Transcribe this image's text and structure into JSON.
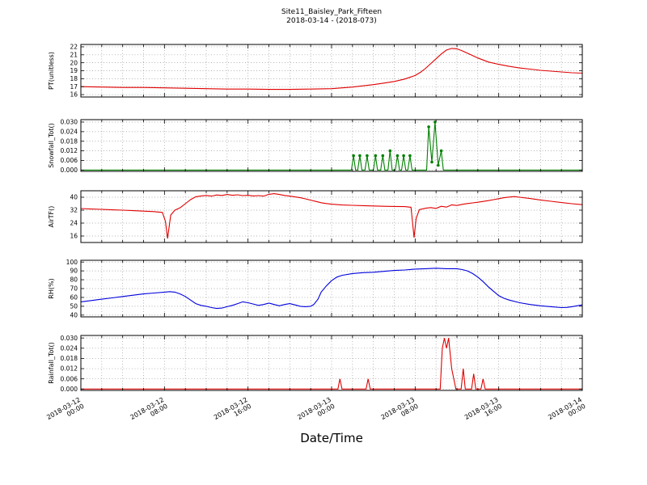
{
  "chart_data": {
    "type": "line",
    "title": "Site11_Baisley_Park_Fifteen",
    "subtitle": "2018-03-14 - (2018-073)",
    "xlabel": "Date/Time",
    "grid": true,
    "x_unit": "hours since 2018-03-12 00:00",
    "x_range": [
      0,
      48
    ],
    "x_grid_step": 2,
    "x_ticks": [
      {
        "v": 0,
        "l1": "2018-03-12",
        "l2": "00:00"
      },
      {
        "v": 8,
        "l1": "2018-03-12",
        "l2": "08:00"
      },
      {
        "v": 16,
        "l1": "2018-03-12",
        "l2": "16:00"
      },
      {
        "v": 24,
        "l1": "2018-03-13",
        "l2": "00:00"
      },
      {
        "v": 32,
        "l1": "2018-03-13",
        "l2": "08:00"
      },
      {
        "v": 40,
        "l1": "2018-03-13",
        "l2": "16:00"
      },
      {
        "v": 48,
        "l1": "2018-03-14",
        "l2": "00:00"
      }
    ],
    "subplots": [
      {
        "id": "pt",
        "ylabel": "PT(unitless)",
        "color": "#e00000",
        "ylim": [
          15.7,
          22.3
        ],
        "yticks": [
          16,
          17,
          18,
          19,
          20,
          21,
          22
        ],
        "ytick_labels": [
          "16",
          "17",
          "18",
          "19",
          "20",
          "21",
          "22"
        ],
        "marker": false,
        "x": [
          0,
          2,
          4,
          6,
          8,
          10,
          12,
          14,
          16,
          18,
          20,
          22,
          24,
          25,
          26,
          27,
          28,
          29,
          30,
          31,
          32,
          32.5,
          33,
          33.5,
          34,
          34.5,
          35,
          35.5,
          36,
          36.5,
          37,
          37.5,
          38,
          38.5,
          39,
          40,
          41,
          42,
          43,
          44,
          45,
          46,
          47,
          48
        ],
        "y": [
          17.0,
          16.95,
          16.9,
          16.9,
          16.85,
          16.8,
          16.75,
          16.7,
          16.7,
          16.65,
          16.65,
          16.7,
          16.75,
          16.85,
          16.95,
          17.1,
          17.25,
          17.45,
          17.65,
          17.95,
          18.4,
          18.8,
          19.3,
          19.9,
          20.5,
          21.1,
          21.6,
          21.8,
          21.75,
          21.5,
          21.2,
          20.9,
          20.6,
          20.35,
          20.1,
          19.8,
          19.55,
          19.35,
          19.2,
          19.05,
          18.95,
          18.85,
          18.75,
          18.7
        ]
      },
      {
        "id": "snowfall",
        "ylabel": "Snowfall_Tot()",
        "color": "#008000",
        "ylim": [
          -0.0008,
          0.0315
        ],
        "yticks": [
          0,
          0.006,
          0.012,
          0.018,
          0.024,
          0.03
        ],
        "ytick_labels": [
          "0.000",
          "0.006",
          "0.012",
          "0.018",
          "0.024",
          "0.030"
        ],
        "marker": true,
        "x": [
          0,
          25.9,
          26.1,
          26.3,
          26.5,
          26.7,
          26.9,
          27.2,
          27.4,
          27.6,
          28.0,
          28.2,
          28.4,
          28.7,
          28.9,
          29.1,
          29.4,
          29.6,
          29.8,
          30.1,
          30.3,
          30.5,
          30.7,
          30.9,
          31.1,
          31.3,
          31.5,
          31.7,
          33.1,
          33.3,
          33.6,
          33.9,
          34.2,
          34.5,
          34.7,
          48
        ],
        "y": [
          0,
          0,
          0.009,
          0,
          0,
          0.009,
          0,
          0,
          0.009,
          0,
          0,
          0.009,
          0,
          0,
          0.009,
          0,
          0,
          0.012,
          0,
          0,
          0.009,
          0,
          0,
          0.009,
          0,
          0,
          0.009,
          0,
          0,
          0.027,
          0.005,
          0.03,
          0.003,
          0.012,
          0,
          0
        ]
      },
      {
        "id": "airtf",
        "ylabel": "AirTF()",
        "color": "#e00000",
        "ylim": [
          12,
          44
        ],
        "yticks": [
          16,
          24,
          32,
          40
        ],
        "ytick_labels": [
          "16",
          "24",
          "32",
          "40"
        ],
        "marker": false,
        "x": [
          0,
          1,
          2,
          3,
          4,
          5,
          6,
          7,
          7.8,
          8.1,
          8.3,
          8.6,
          9,
          9.5,
          10,
          10.5,
          11,
          11.5,
          12,
          12.5,
          13,
          13.5,
          14,
          14.5,
          15,
          15.5,
          16,
          16.5,
          17,
          17.5,
          18,
          18.5,
          19,
          19.5,
          20,
          20.5,
          21,
          21.5,
          22,
          22.5,
          23,
          23.5,
          24,
          25,
          26,
          27,
          28,
          29,
          30,
          31,
          31.6,
          31.9,
          32.1,
          32.4,
          33,
          33.5,
          34,
          34.5,
          35,
          35.5,
          36,
          36.5,
          37,
          37.5,
          38,
          38.5,
          39,
          39.5,
          40,
          40.5,
          41,
          41.5,
          42,
          43,
          44,
          45,
          46,
          47,
          48
        ],
        "y": [
          33,
          32.7,
          32.5,
          32.2,
          32,
          31.7,
          31.4,
          31.1,
          30.6,
          25,
          14.5,
          29,
          32,
          33.5,
          36,
          38.5,
          40.3,
          40.8,
          41.1,
          40.7,
          41.4,
          41.1,
          41.7,
          41.2,
          41.5,
          41.0,
          41.2,
          40.8,
          41.0,
          40.7,
          41.8,
          42.2,
          41.7,
          41.1,
          40.7,
          40.2,
          39.7,
          39.0,
          38.2,
          37.4,
          36.6,
          36.1,
          35.7,
          35.2,
          35.0,
          34.8,
          34.6,
          34.4,
          34.3,
          34.2,
          33.8,
          15,
          27,
          32.3,
          33.2,
          33.6,
          33.1,
          34.4,
          33.9,
          35.3,
          34.9,
          35.6,
          36.1,
          36.5,
          36.9,
          37.4,
          37.9,
          38.5,
          39.1,
          39.7,
          40.1,
          40.4,
          40.0,
          39.2,
          38.3,
          37.5,
          36.7,
          36.0,
          35.4
        ]
      },
      {
        "id": "rh",
        "ylabel": "RH(%)",
        "color": "#0000dd",
        "ylim": [
          38,
          102
        ],
        "yticks": [
          40,
          50,
          60,
          70,
          80,
          90,
          100
        ],
        "ytick_labels": [
          "40",
          "50",
          "60",
          "70",
          "80",
          "90",
          "100"
        ],
        "marker": false,
        "x": [
          0,
          1,
          2,
          3,
          4,
          5,
          6,
          7,
          8,
          8.5,
          9,
          9.5,
          10,
          10.5,
          11,
          11.5,
          12,
          12.5,
          13,
          13.5,
          14,
          14.5,
          15,
          15.5,
          16,
          16.5,
          17,
          17.5,
          18,
          18.5,
          19,
          19.5,
          20,
          20.5,
          21,
          21.5,
          22,
          22.3,
          22.7,
          23,
          23.5,
          24,
          24.5,
          25,
          26,
          27,
          28,
          29,
          30,
          31,
          32,
          33,
          34,
          35,
          36,
          36.5,
          37,
          37.5,
          38,
          38.5,
          39,
          39.5,
          40,
          40.5,
          41,
          42,
          43,
          44,
          45,
          46,
          46.5,
          47,
          48
        ],
        "y": [
          55,
          56.5,
          58,
          59.5,
          61,
          62.5,
          64,
          65,
          66,
          66.5,
          66,
          64,
          61,
          57,
          53,
          51,
          50,
          48.5,
          47.5,
          48,
          49.5,
          51,
          53,
          55,
          54,
          52.5,
          51,
          52,
          53.5,
          52,
          50.5,
          52,
          53,
          51.5,
          50,
          49.5,
          50,
          52,
          58,
          66,
          73,
          79,
          83,
          85,
          87,
          88,
          88.5,
          89.5,
          90.5,
          91,
          92,
          92.5,
          93,
          92.5,
          92.5,
          91.5,
          90,
          87,
          83,
          78,
          72,
          67,
          62,
          59,
          57,
          54,
          52,
          50.5,
          49.5,
          48.5,
          48.7,
          49.5,
          51.5
        ]
      },
      {
        "id": "rainfall",
        "ylabel": "Rainfall_Tot()",
        "color": "#e00000",
        "ylim": [
          -0.0008,
          0.0315
        ],
        "yticks": [
          0,
          0.006,
          0.012,
          0.018,
          0.024,
          0.03
        ],
        "ytick_labels": [
          "0.000",
          "0.006",
          "0.012",
          "0.018",
          "0.024",
          "0.030"
        ],
        "marker": false,
        "x": [
          0,
          24.6,
          24.8,
          25.0,
          27.3,
          27.5,
          27.7,
          34.4,
          34.6,
          34.8,
          35.0,
          35.2,
          35.5,
          35.7,
          35.9,
          36.4,
          36.6,
          36.8,
          37.4,
          37.6,
          37.8,
          38.3,
          38.5,
          38.7,
          48
        ],
        "y": [
          0,
          0,
          0.006,
          0,
          0,
          0.006,
          0,
          0,
          0.024,
          0.03,
          0.024,
          0.03,
          0.012,
          0.006,
          0,
          0,
          0.012,
          0,
          0,
          0.009,
          0,
          0,
          0.006,
          0,
          0
        ]
      }
    ]
  }
}
